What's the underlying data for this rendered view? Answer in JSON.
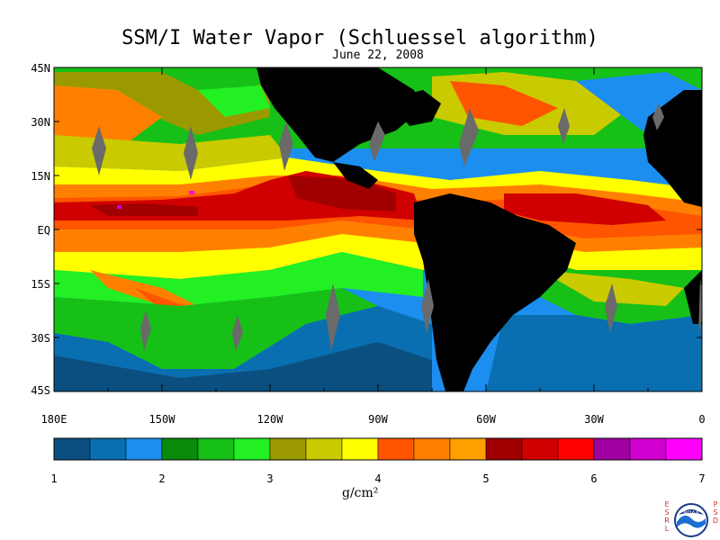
{
  "title": "SSM/I Water Vapor (Schluessel algorithm)",
  "subtitle": "June 22, 2008",
  "lat_labels": [
    "45N",
    "30N",
    "15N",
    "EQ",
    "15S",
    "30S",
    "45S"
  ],
  "lon_labels": [
    "180E",
    "150W",
    "120W",
    "90W",
    "60W",
    "30W",
    "0"
  ],
  "colorbar": {
    "colors": [
      "#0a4f80",
      "#0a6fb0",
      "#1b8ef0",
      "#0a8a0a",
      "#16c016",
      "#22f022",
      "#9a9a00",
      "#caca00",
      "#ffff00",
      "#ff5500",
      "#ff8000",
      "#ffa000",
      "#a00000",
      "#d00000",
      "#ff0000",
      "#a000a0",
      "#d000d0",
      "#ff00ff"
    ],
    "tick_labels": [
      "1",
      "2",
      "3",
      "4",
      "5",
      "6",
      "7"
    ],
    "units": "g/cm²"
  },
  "logo": {
    "left_letters": [
      "E",
      "S",
      "R",
      "L"
    ],
    "right_letters": [
      "P",
      "S",
      "D"
    ],
    "text": "NOAA"
  }
}
